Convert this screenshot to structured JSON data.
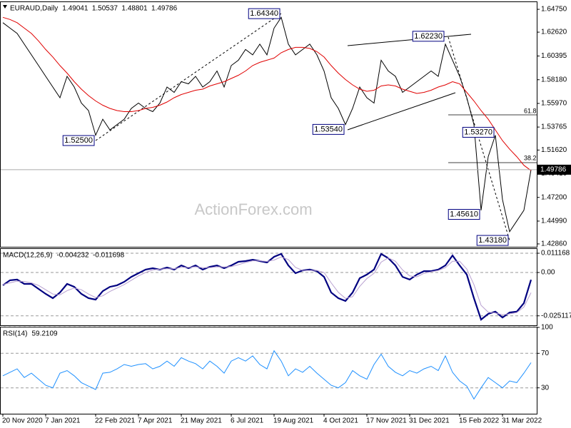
{
  "chart_data": [
    {
      "type": "line",
      "title": "EURAUD,Daily",
      "ohlc": [
        1.49041,
        1.50537,
        1.48801,
        1.49786
      ],
      "watermark": "ActionForex.com",
      "ylim": [
        1.4259,
        1.6542
      ],
      "yticks": [
        {
          "value": 1.6475,
          "label": "1.64750"
        },
        {
          "value": 1.6262,
          "label": "1.62620"
        },
        {
          "value": 1.60395,
          "label": "1.60395"
        },
        {
          "value": 1.5818,
          "label": "1.58180"
        },
        {
          "value": 1.5597,
          "label": "1.55970"
        },
        {
          "value": 1.53765,
          "label": "1.53765"
        },
        {
          "value": 1.5162,
          "label": "1.51620"
        },
        {
          "value": 1.4941,
          "label": "1.49410"
        },
        {
          "value": 1.472,
          "label": "1.47200"
        },
        {
          "value": 1.4499,
          "label": "1.44990"
        },
        {
          "value": 1.4286,
          "label": "1.42860"
        }
      ],
      "grid": false,
      "series": [
        {
          "color": "#000000",
          "values": [
            1.635,
            1.63,
            1.625,
            1.615,
            1.605,
            1.595,
            1.585,
            1.575,
            1.565,
            1.585,
            1.575,
            1.56,
            1.553,
            1.53,
            1.545,
            1.535,
            1.54,
            1.545,
            1.555,
            1.56,
            1.555,
            1.552,
            1.56,
            1.575,
            1.57,
            1.58,
            1.578,
            1.585,
            1.575,
            1.58,
            1.59,
            1.575,
            1.595,
            1.6,
            1.61,
            1.605,
            1.615,
            1.605,
            1.63,
            1.64,
            1.615,
            1.605,
            1.61,
            1.615,
            1.605,
            1.59,
            1.565,
            1.555,
            1.54,
            1.555,
            1.575,
            1.565,
            1.56,
            1.6,
            1.59,
            1.585,
            1.57,
            1.575,
            1.58,
            1.585,
            1.59,
            1.585,
            1.615,
            1.6,
            1.585,
            1.565,
            1.54,
            1.46,
            1.51,
            1.53,
            1.47,
            1.44,
            1.45,
            1.46,
            1.49786
          ]
        },
        {
          "color": "#e00000",
          "values": [
            1.64,
            1.638,
            1.635,
            1.63,
            1.625,
            1.618,
            1.61,
            1.603,
            1.595,
            1.588,
            1.58,
            1.573,
            1.567,
            1.562,
            1.558,
            1.555,
            1.553,
            1.552,
            1.552,
            1.553,
            1.555,
            1.556,
            1.558,
            1.561,
            1.565,
            1.568,
            1.57,
            1.572,
            1.573,
            1.576,
            1.578,
            1.58,
            1.583,
            1.586,
            1.59,
            1.595,
            1.598,
            1.6,
            1.602,
            1.607,
            1.61,
            1.612,
            1.612,
            1.611,
            1.608,
            1.603,
            1.595,
            1.588,
            1.582,
            1.577,
            1.573,
            1.571,
            1.572,
            1.576,
            1.577,
            1.576,
            1.573,
            1.571,
            1.569,
            1.57,
            1.572,
            1.575,
            1.577,
            1.58,
            1.578,
            1.57,
            1.562,
            1.553,
            1.545,
            1.535,
            1.525,
            1.517,
            1.51,
            1.502,
            1.497
          ]
        }
      ],
      "price_labels": [
        {
          "x": 13,
          "value": 1.525,
          "label": "1.52500"
        },
        {
          "x": 39,
          "value": 1.6434,
          "label": "1.64340"
        },
        {
          "x": 48,
          "value": 1.5354,
          "label": "1.53540"
        },
        {
          "x": 62,
          "value": 1.6223,
          "label": "1.62230"
        },
        {
          "x": 69,
          "value": 1.5327,
          "label": "1.53270"
        },
        {
          "x": 67,
          "value": 1.4561,
          "label": "1.45610"
        },
        {
          "x": 71,
          "value": 1.4318,
          "label": "1.43180"
        }
      ],
      "fib_labels": [
        61.8,
        38.2
      ]
    },
    {
      "type": "line",
      "title": "MACD(12,26,9)",
      "readout": [
        -0.004232,
        -0.011698
      ],
      "ylim": [
        -0.0306,
        0.01365
      ],
      "yticks": [
        0.011168,
        {
          "value": 0,
          "label": "0.00"
        },
        -0.025117
      ],
      "grid": true,
      "series": [
        {
          "color": "#000080",
          "values": [
            -0.0074,
            -0.0045,
            -0.0041,
            -0.0066,
            -0.0066,
            -0.0095,
            -0.0124,
            -0.0149,
            -0.0116,
            -0.0066,
            -0.0083,
            -0.0124,
            -0.0149,
            -0.0157,
            -0.0108,
            -0.0083,
            -0.0074,
            -0.0054,
            -0.0025,
            -0.0004,
            0.0017,
            0.0025,
            0.0017,
            0.0029,
            0.0017,
            0.0041,
            0.0025,
            0.0041,
            0.0017,
            0.0033,
            0.0041,
            0.0025,
            0.0041,
            0.0062,
            0.0066,
            0.0074,
            0.0066,
            0.0058,
            0.0091,
            0.0108,
            0.0041,
            -0.0004,
            0.0012,
            0.0017,
            0.0008,
            -0.0025,
            -0.0116,
            -0.0149,
            -0.0165,
            -0.0116,
            -0.0033,
            -0.0012,
            0.0017,
            0.0108,
            0.0083,
            0.0041,
            -0.0025,
            -0.0041,
            -0.0012,
            0.0008,
            0.0008,
            0.0017,
            0.0041,
            0.0099,
            0.0041,
            -0.0012,
            -0.0149,
            -0.0273,
            -0.024,
            -0.0227,
            -0.0261,
            -0.0232,
            -0.0227,
            -0.0178,
            -0.004232
          ]
        },
        {
          "color": "#b8a0d0",
          "values": [
            -0.007,
            -0.006,
            -0.005,
            -0.0052,
            -0.006,
            -0.0075,
            -0.01,
            -0.0125,
            -0.013,
            -0.0105,
            -0.009,
            -0.01,
            -0.0125,
            -0.0145,
            -0.0135,
            -0.011,
            -0.009,
            -0.007,
            -0.0045,
            -0.002,
            0.0,
            0.0015,
            0.002,
            0.0022,
            0.0022,
            0.003,
            0.003,
            0.0033,
            0.0028,
            0.0028,
            0.0033,
            0.0032,
            0.0034,
            0.0045,
            0.0058,
            0.0068,
            0.0068,
            0.0064,
            0.0072,
            0.009,
            0.0075,
            0.003,
            0.0012,
            0.0012,
            0.0012,
            0.0,
            -0.006,
            -0.0115,
            -0.015,
            -0.014,
            -0.008,
            -0.0035,
            -0.0005,
            0.006,
            0.0085,
            0.0065,
            0.0015,
            -0.002,
            -0.0025,
            -0.0005,
            0.0004,
            0.0012,
            0.0028,
            0.0065,
            0.0065,
            0.002,
            -0.007,
            -0.019,
            -0.023,
            -0.0235,
            -0.0245,
            -0.024,
            -0.0232,
            -0.02,
            -0.011698
          ]
        }
      ]
    },
    {
      "type": "line",
      "title": "RSI(14)",
      "readout": [
        59.2109
      ],
      "ylim": [
        0,
        100
      ],
      "yticks": [
        100,
        70,
        30
      ],
      "grid": true,
      "series": [
        {
          "color": "#1e90ff",
          "values": [
            44,
            48,
            52,
            42,
            47,
            40,
            33,
            30,
            47,
            50,
            44,
            36,
            32,
            28,
            47,
            48,
            52,
            57,
            55,
            57,
            58,
            52,
            55,
            61,
            55,
            65,
            61,
            58,
            52,
            61,
            55,
            47,
            61,
            65,
            61,
            67,
            57,
            52,
            73,
            61,
            44,
            52,
            48,
            55,
            47,
            40,
            33,
            30,
            36,
            50,
            44,
            40,
            57,
            69,
            55,
            48,
            44,
            50,
            47,
            52,
            55,
            50,
            67,
            48,
            38,
            32,
            17,
            30,
            42,
            36,
            30,
            38,
            36,
            47,
            59.2109
          ]
        }
      ],
      "xticks": [
        {
          "value": 0,
          "label": "20 Nov 2020"
        },
        {
          "value": 6,
          "label": "7 Jan 2021"
        },
        {
          "value": 13,
          "label": "22 Feb 2021"
        },
        {
          "value": 19,
          "label": "7 Apr 2021"
        },
        {
          "value": 25,
          "label": "21 May 2021"
        },
        {
          "value": 32,
          "label": "6 Jul 2021"
        },
        {
          "value": 38,
          "label": "19 Aug 2021"
        },
        {
          "value": 45,
          "label": "4 Oct 2021"
        },
        {
          "value": 51,
          "label": "17 Nov 2021"
        },
        {
          "value": 57,
          "label": "31 Dec 2021"
        },
        {
          "value": 64,
          "label": "15 Feb 2022"
        },
        {
          "value": 70,
          "label": "31 Mar 2022"
        }
      ]
    }
  ]
}
